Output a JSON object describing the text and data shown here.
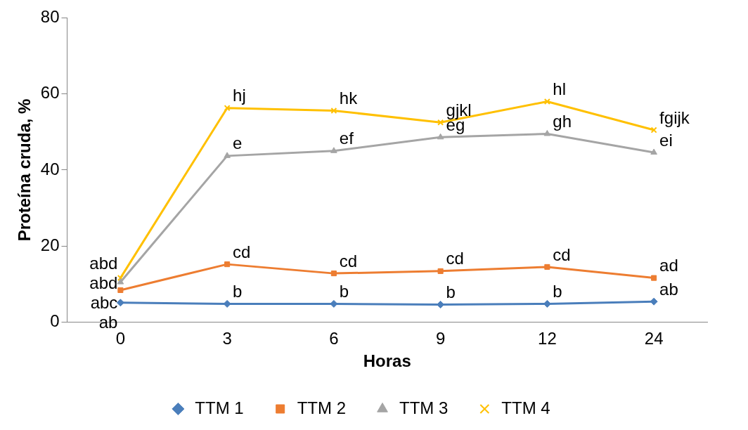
{
  "chart_data": {
    "type": "line",
    "xlabel": "Horas",
    "ylabel": "Proteína cruda, %",
    "categories": [
      "0",
      "3",
      "6",
      "9",
      "12",
      "24"
    ],
    "ylim": [
      0,
      80
    ],
    "yticks": [
      0,
      20,
      40,
      60,
      80
    ],
    "grid": false,
    "legend": "bottom",
    "series": [
      {
        "name": "TTM 1",
        "color": "#4a7ebb",
        "marker": "diamond",
        "values": [
          5.1,
          4.8,
          4.8,
          4.6,
          4.8,
          5.4
        ]
      },
      {
        "name": "TTM 2",
        "color": "#ed7d31",
        "marker": "square",
        "values": [
          8.4,
          15.2,
          12.8,
          13.4,
          14.5,
          11.6
        ]
      },
      {
        "name": "TTM 3",
        "color": "#a5a5a5",
        "marker": "triangle",
        "values": [
          10.5,
          43.7,
          45.0,
          48.6,
          49.5,
          44.6
        ]
      },
      {
        "name": "TTM 4",
        "color": "#ffc000",
        "marker": "cross",
        "values": [
          11.6,
          56.3,
          55.6,
          52.5,
          58.0,
          50.5
        ]
      }
    ],
    "annotations": [
      {
        "text": "ab",
        "x": "0",
        "y": 5.1
      },
      {
        "text": "abc",
        "x": "0",
        "y": 8.4
      },
      {
        "text": "abd",
        "x": "0",
        "y": 10.5
      },
      {
        "text": "abd",
        "x": "0",
        "y": 11.6
      },
      {
        "text": "b",
        "x": "3",
        "y": 4.8
      },
      {
        "text": "b",
        "x": "6",
        "y": 4.8
      },
      {
        "text": "b",
        "x": "9",
        "y": 4.6
      },
      {
        "text": "b",
        "x": "12",
        "y": 4.8
      },
      {
        "text": "ab",
        "x": "24",
        "y": 5.4
      },
      {
        "text": "cd",
        "x": "3",
        "y": 15.2
      },
      {
        "text": "cd",
        "x": "6",
        "y": 12.8
      },
      {
        "text": "cd",
        "x": "9",
        "y": 13.4
      },
      {
        "text": "cd",
        "x": "12",
        "y": 14.5
      },
      {
        "text": "ad",
        "x": "24",
        "y": 11.6
      },
      {
        "text": "e",
        "x": "3",
        "y": 43.7
      },
      {
        "text": "ef",
        "x": "6",
        "y": 45.0
      },
      {
        "text": "eg",
        "x": "9",
        "y": 48.6
      },
      {
        "text": "gh",
        "x": "12",
        "y": 49.5
      },
      {
        "text": "ei",
        "x": "24",
        "y": 44.6
      },
      {
        "text": "hj",
        "x": "3",
        "y": 56.3
      },
      {
        "text": "hk",
        "x": "6",
        "y": 55.6
      },
      {
        "text": "gjkl",
        "x": "9",
        "y": 52.5
      },
      {
        "text": "hl",
        "x": "12",
        "y": 58.0
      },
      {
        "text": "fgijk",
        "x": "24",
        "y": 50.5
      }
    ]
  }
}
